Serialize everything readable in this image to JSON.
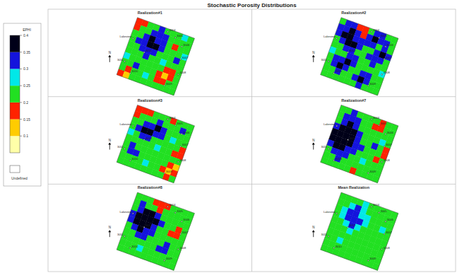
{
  "chart_data": {
    "type": "heatmap",
    "title": "Stochastic Porosity Distributions",
    "colorbar": {
      "label": "EPHI",
      "range": [
        0.05,
        0.4
      ],
      "ticks": [
        0.4,
        0.35,
        0.3,
        0.25,
        0.2,
        0.15,
        0.1
      ],
      "colors": [
        "#ffffa8",
        "#ffcc00",
        "#ff2200",
        "#22e022",
        "#00e8e8",
        "#1414dc",
        "#000018"
      ],
      "undefined_label": "Undefined"
    },
    "north_label": "N",
    "wells": [
      {
        "label": "Lakeview",
        "col": 0.5,
        "row": 3.5
      },
      {
        "label": "3004",
        "col": 5.5,
        "row": 0.5
      },
      {
        "label": "3005",
        "col": 7,
        "row": 1
      },
      {
        "label": "3006",
        "col": 8.5,
        "row": 2
      },
      {
        "label": "3007",
        "col": 9,
        "row": 4
      },
      {
        "label": "3008",
        "col": 9.5,
        "row": 6.5
      },
      {
        "label": "3009",
        "col": 8,
        "row": 9
      },
      {
        "label": "3010",
        "col": 2,
        "row": 9
      },
      {
        "label": "3011",
        "col": 0.5,
        "row": 7.5
      },
      {
        "label": "3012",
        "col": 3,
        "row": 5
      }
    ],
    "panels": [
      {
        "title": "Realization#1",
        "cells": [
          [
            0.17,
            0.17,
            0.22,
            0.22,
            0.32,
            0.22,
            0.22,
            0.22,
            0.27,
            0.22
          ],
          [
            0.17,
            0.22,
            0.22,
            0.32,
            0.32,
            0.32,
            0.22,
            0.22,
            0.22,
            0.22
          ],
          [
            0.22,
            0.22,
            0.32,
            0.37,
            0.32,
            0.32,
            0.22,
            0.17,
            0.22,
            0.22
          ],
          [
            0.22,
            0.32,
            0.32,
            0.37,
            0.37,
            0.32,
            0.22,
            0.22,
            0.22,
            0.27
          ],
          [
            0.22,
            0.22,
            0.32,
            0.32,
            0.32,
            0.22,
            0.22,
            0.22,
            0.32,
            0.22
          ],
          [
            0.22,
            0.22,
            0.22,
            0.32,
            0.22,
            0.22,
            0.27,
            0.22,
            0.22,
            0.22
          ],
          [
            0.27,
            0.22,
            0.22,
            0.22,
            0.22,
            0.22,
            0.22,
            0.17,
            0.17,
            0.22
          ],
          [
            0.22,
            0.22,
            0.32,
            0.22,
            0.22,
            0.22,
            0.17,
            0.12,
            0.17,
            0.22
          ],
          [
            0.22,
            0.17,
            0.22,
            0.22,
            0.27,
            0.22,
            0.17,
            0.17,
            0.22,
            0.22
          ],
          [
            0.17,
            0.12,
            0.22,
            0.22,
            0.22,
            0.22,
            0.22,
            0.22,
            0.22,
            0.22
          ]
        ]
      },
      {
        "title": "Realization#2",
        "cells": [
          [
            0.22,
            0.32,
            0.32,
            0.17,
            0.17,
            0.22,
            0.32,
            0.32,
            0.22,
            0.22
          ],
          [
            0.32,
            0.32,
            0.37,
            0.32,
            0.17,
            0.32,
            0.37,
            0.32,
            0.32,
            0.22
          ],
          [
            0.32,
            0.37,
            0.37,
            0.32,
            0.32,
            0.32,
            0.32,
            0.22,
            0.32,
            0.22
          ],
          [
            0.22,
            0.32,
            0.37,
            0.37,
            0.32,
            0.22,
            0.22,
            0.32,
            0.37,
            0.32
          ],
          [
            0.22,
            0.22,
            0.32,
            0.32,
            0.22,
            0.22,
            0.32,
            0.32,
            0.32,
            0.22
          ],
          [
            0.27,
            0.22,
            0.22,
            0.32,
            0.32,
            0.22,
            0.22,
            0.32,
            0.22,
            0.22
          ],
          [
            0.22,
            0.32,
            0.32,
            0.37,
            0.32,
            0.22,
            0.22,
            0.22,
            0.22,
            0.27
          ],
          [
            0.22,
            0.32,
            0.37,
            0.32,
            0.22,
            0.22,
            0.32,
            0.32,
            0.22,
            0.22
          ],
          [
            0.22,
            0.22,
            0.32,
            0.22,
            0.22,
            0.32,
            0.37,
            0.32,
            0.22,
            0.22
          ],
          [
            0.22,
            0.22,
            0.22,
            0.22,
            0.22,
            0.22,
            0.32,
            0.22,
            0.22,
            0.22
          ]
        ]
      },
      {
        "title": "Realization#3",
        "cells": [
          [
            0.17,
            0.17,
            0.17,
            0.22,
            0.22,
            0.22,
            0.17,
            0.22,
            0.22,
            0.22
          ],
          [
            0.17,
            0.22,
            0.22,
            0.22,
            0.32,
            0.22,
            0.22,
            0.22,
            0.32,
            0.22
          ],
          [
            0.22,
            0.22,
            0.32,
            0.32,
            0.37,
            0.32,
            0.22,
            0.22,
            0.22,
            0.22
          ],
          [
            0.22,
            0.32,
            0.37,
            0.37,
            0.32,
            0.32,
            0.22,
            0.27,
            0.22,
            0.22
          ],
          [
            0.27,
            0.22,
            0.32,
            0.32,
            0.22,
            0.22,
            0.22,
            0.22,
            0.22,
            0.17
          ],
          [
            0.22,
            0.22,
            0.22,
            0.22,
            0.22,
            0.27,
            0.22,
            0.22,
            0.17,
            0.17
          ],
          [
            0.22,
            0.32,
            0.22,
            0.22,
            0.22,
            0.22,
            0.22,
            0.22,
            0.22,
            0.22
          ],
          [
            0.22,
            0.32,
            0.32,
            0.22,
            0.22,
            0.22,
            0.22,
            0.22,
            0.17,
            0.12
          ],
          [
            0.22,
            0.22,
            0.22,
            0.22,
            0.27,
            0.22,
            0.22,
            0.17,
            0.12,
            0.17
          ],
          [
            0.22,
            0.22,
            0.22,
            0.22,
            0.22,
            0.22,
            0.22,
            0.22,
            0.17,
            0.22
          ]
        ]
      },
      {
        "title": "Realization#7",
        "cells": [
          [
            0.22,
            0.22,
            0.32,
            0.22,
            0.22,
            0.22,
            0.22,
            0.17,
            0.22,
            0.22
          ],
          [
            0.22,
            0.32,
            0.32,
            0.32,
            0.22,
            0.22,
            0.17,
            0.17,
            0.22,
            0.22
          ],
          [
            0.22,
            0.32,
            0.37,
            0.32,
            0.22,
            0.22,
            0.22,
            0.22,
            0.22,
            0.22
          ],
          [
            0.32,
            0.37,
            0.37,
            0.37,
            0.32,
            0.22,
            0.22,
            0.22,
            0.27,
            0.22
          ],
          [
            0.37,
            0.37,
            0.37,
            0.37,
            0.32,
            0.22,
            0.22,
            0.32,
            0.22,
            0.17
          ],
          [
            0.37,
            0.37,
            0.37,
            0.37,
            0.32,
            0.32,
            0.22,
            0.22,
            0.22,
            0.17
          ],
          [
            0.32,
            0.37,
            0.37,
            0.32,
            0.32,
            0.22,
            0.22,
            0.22,
            0.17,
            0.22
          ],
          [
            0.22,
            0.32,
            0.32,
            0.32,
            0.22,
            0.22,
            0.27,
            0.22,
            0.22,
            0.22
          ],
          [
            0.22,
            0.22,
            0.32,
            0.22,
            0.22,
            0.22,
            0.22,
            0.22,
            0.22,
            0.22
          ],
          [
            0.22,
            0.22,
            0.22,
            0.22,
            0.22,
            0.17,
            0.22,
            0.22,
            0.22,
            0.22
          ]
        ]
      },
      {
        "title": "Realization#8",
        "cells": [
          [
            0.22,
            0.22,
            0.22,
            0.17,
            0.17,
            0.17,
            0.22,
            0.22,
            0.22,
            0.22
          ],
          [
            0.22,
            0.32,
            0.22,
            0.22,
            0.17,
            0.22,
            0.22,
            0.22,
            0.22,
            0.22
          ],
          [
            0.22,
            0.32,
            0.37,
            0.37,
            0.32,
            0.22,
            0.22,
            0.22,
            0.22,
            0.22
          ],
          [
            0.32,
            0.37,
            0.37,
            0.37,
            0.37,
            0.32,
            0.22,
            0.22,
            0.17,
            0.22
          ],
          [
            0.32,
            0.37,
            0.37,
            0.37,
            0.32,
            0.22,
            0.22,
            0.17,
            0.17,
            0.22
          ],
          [
            0.22,
            0.32,
            0.37,
            0.32,
            0.32,
            0.22,
            0.22,
            0.22,
            0.22,
            0.22
          ],
          [
            0.22,
            0.22,
            0.32,
            0.32,
            0.22,
            0.22,
            0.22,
            0.32,
            0.22,
            0.22
          ],
          [
            0.22,
            0.22,
            0.22,
            0.22,
            0.22,
            0.22,
            0.32,
            0.32,
            0.22,
            0.22
          ],
          [
            0.22,
            0.22,
            0.22,
            0.27,
            0.22,
            0.22,
            0.22,
            0.22,
            0.22,
            0.22
          ],
          [
            0.22,
            0.22,
            0.22,
            0.22,
            0.22,
            0.22,
            0.22,
            0.22,
            0.22,
            0.22
          ]
        ]
      },
      {
        "title": "Mean Realization",
        "cells": [
          [
            0.22,
            0.22,
            0.22,
            0.22,
            0.27,
            0.22,
            0.22,
            0.22,
            0.22,
            0.22
          ],
          [
            0.22,
            0.22,
            0.27,
            0.32,
            0.27,
            0.22,
            0.22,
            0.22,
            0.22,
            0.22
          ],
          [
            0.22,
            0.27,
            0.32,
            0.32,
            0.27,
            0.27,
            0.22,
            0.22,
            0.22,
            0.22
          ],
          [
            0.22,
            0.27,
            0.32,
            0.32,
            0.32,
            0.27,
            0.22,
            0.22,
            0.27,
            0.22
          ],
          [
            0.22,
            0.22,
            0.27,
            0.32,
            0.27,
            0.22,
            0.22,
            0.22,
            0.22,
            0.22
          ],
          [
            0.22,
            0.22,
            0.22,
            0.27,
            0.22,
            0.22,
            0.22,
            0.22,
            0.22,
            0.22
          ],
          [
            0.22,
            0.22,
            0.22,
            0.22,
            0.22,
            0.22,
            0.22,
            0.22,
            0.22,
            0.22
          ],
          [
            0.22,
            0.22,
            0.27,
            0.22,
            0.22,
            0.22,
            0.22,
            0.22,
            0.22,
            0.22
          ],
          [
            0.22,
            0.22,
            0.22,
            0.22,
            0.22,
            0.22,
            0.22,
            0.22,
            0.22,
            0.22
          ],
          [
            0.22,
            0.22,
            0.22,
            0.22,
            0.22,
            0.22,
            0.22,
            0.22,
            0.22,
            0.22
          ]
        ]
      }
    ]
  }
}
